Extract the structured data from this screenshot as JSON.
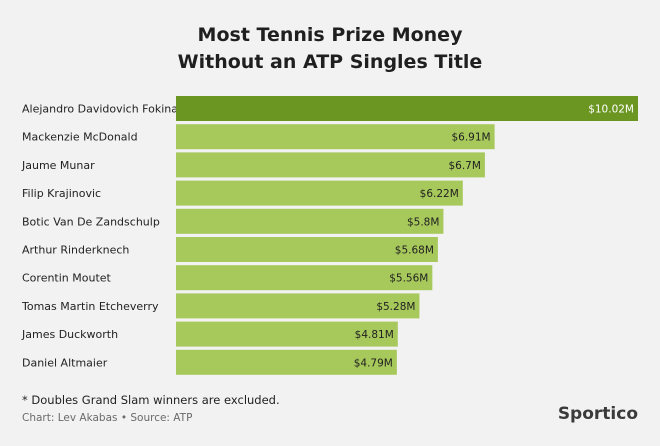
{
  "header": {
    "title_line1": "Most Tennis Prize Money",
    "title_line2": "Without an ATP Singles Title"
  },
  "footer": {
    "note": "* Doubles Grand Slam winners are excluded.",
    "credit": "Chart: Lev Akabas • Source: ATP",
    "brand": "Sportico"
  },
  "colors": {
    "highlight_bar": "#6b9622",
    "bar": "#a7c95c",
    "highlight_label": "#ffffff",
    "label": "#1f1f1f"
  },
  "chart_data": {
    "type": "bar",
    "orientation": "horizontal",
    "categories": [
      "Alejandro Davidovich Fokina",
      "Mackenzie McDonald",
      "Jaume Munar",
      "Filip Krajinovic",
      "Botic Van De Zandschulp",
      "Arthur Rinderknech",
      "Corentin Moutet",
      "Tomas Martin Etcheverry",
      "James Duckworth",
      "Daniel Altmaier"
    ],
    "values": [
      10.02,
      6.91,
      6.7,
      6.22,
      5.8,
      5.68,
      5.56,
      5.28,
      4.81,
      4.79
    ],
    "value_labels": [
      "$10.02M",
      "$6.91M",
      "$6.7M",
      "$6.22M",
      "$5.8M",
      "$5.68M",
      "$5.56M",
      "$5.28M",
      "$4.81M",
      "$4.79M"
    ],
    "highlight_index": 0,
    "xlim": [
      0,
      10.02
    ],
    "unit": "$M"
  }
}
